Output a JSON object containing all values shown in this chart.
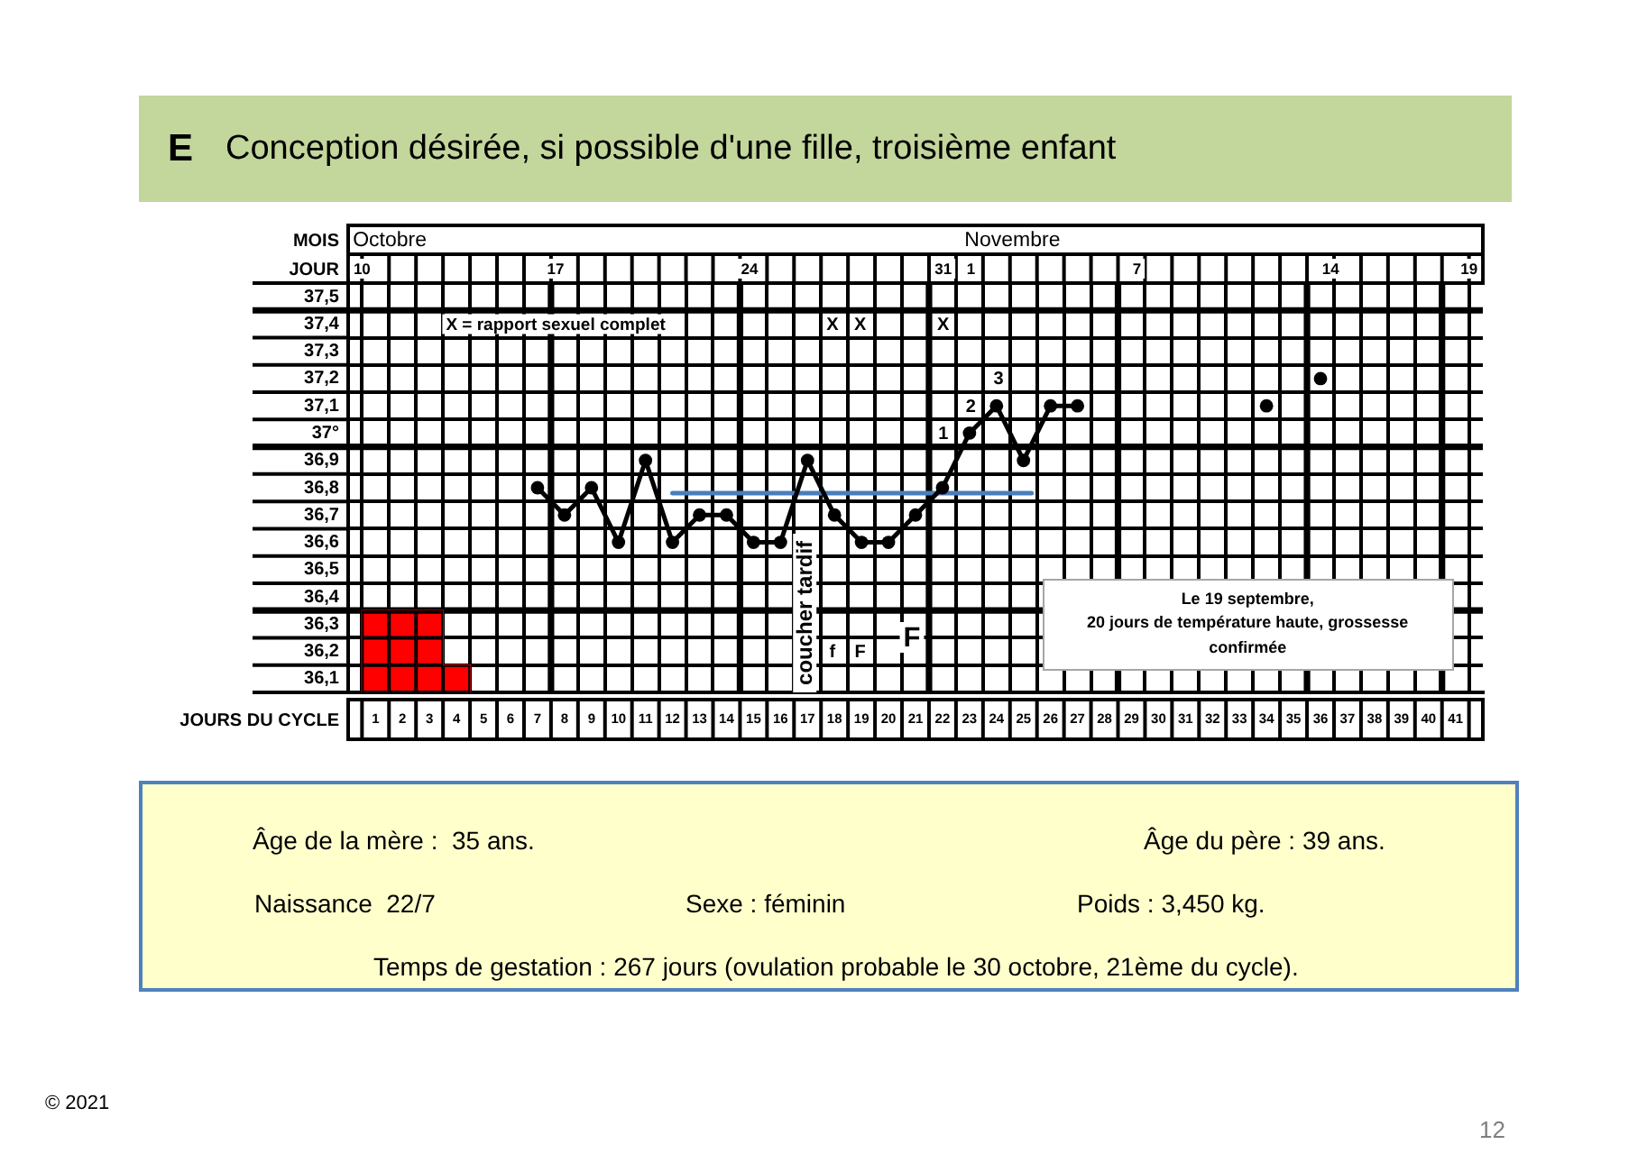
{
  "chart_data": [
    {
      "type": "line",
      "title": "E Conception désirée, si possible d'une fille, troisième enfant",
      "xlabel": "JOURS DU CYCLE",
      "series": [
        {
          "color": "#000000",
          "x": [
            7,
            8,
            9,
            10,
            11,
            12,
            13,
            14,
            15,
            16,
            17,
            18,
            19,
            20,
            21,
            22,
            23,
            24,
            25,
            26,
            27
          ],
          "values": [
            36.8,
            36.7,
            36.8,
            36.6,
            36.9,
            36.6,
            36.7,
            36.7,
            36.6,
            36.6,
            36.9,
            36.7,
            36.6,
            36.6,
            36.7,
            36.8,
            37,
            37.1,
            36.9,
            37.1,
            37.1
          ]
        },
        {
          "type": "scatter",
          "color": "#000000",
          "x": [
            34,
            36
          ],
          "values": [
            37.1,
            37.2
          ]
        },
        {
          "type": "line",
          "color": "#4a7ebb",
          "marker": "none",
          "x": [
            12,
            25.3
          ],
          "values": [
            36.78,
            36.78
          ]
        },
        {
          "type": "bar",
          "color": "#ff0000",
          "x": [
            1,
            2,
            3,
            4
          ],
          "values": [
            36.35,
            36.35,
            36.35,
            36.15
          ]
        }
      ],
      "xlim": [
        0.5,
        41.5
      ],
      "xticks": [
        1,
        2,
        3,
        4,
        5,
        6,
        7,
        8,
        9,
        10,
        11,
        12,
        13,
        14,
        15,
        16,
        17,
        18,
        19,
        20,
        21,
        22,
        23,
        24,
        25,
        26,
        27,
        28,
        29,
        30,
        31,
        32,
        33,
        34,
        35,
        36,
        37,
        38,
        39,
        40,
        41
      ],
      "ylim": [
        36.05,
        37.55
      ],
      "yticks": [
        {
          "value": 36.1,
          "label": "36,1"
        },
        {
          "value": 36.2,
          "label": "36,2"
        },
        {
          "value": 36.3,
          "label": "36,3"
        },
        {
          "value": 36.4,
          "label": "36,4"
        },
        {
          "value": 36.5,
          "label": "36,5"
        },
        {
          "value": 36.6,
          "label": "36,6"
        },
        {
          "value": 36.7,
          "label": "36,7"
        },
        {
          "value": 36.8,
          "label": "36,8"
        },
        {
          "value": 36.9,
          "label": "36,9"
        },
        {
          "value": 37,
          "label": "37°"
        },
        {
          "value": 37.1,
          "label": "37,1"
        },
        {
          "value": 37.2,
          "label": "37,2"
        },
        {
          "value": 37.3,
          "label": "37,3"
        },
        {
          "value": 37.4,
          "label": "37,4"
        },
        {
          "value": 37.5,
          "label": "37,5"
        }
      ],
      "grid": true,
      "marker": "circle",
      "line_style": "solid",
      "ref_lines": [
        {
          "axis": "x",
          "value": 7.5,
          "color": "#000000"
        },
        {
          "axis": "x",
          "value": 14.5,
          "color": "#000000"
        },
        {
          "axis": "x",
          "value": 21.5,
          "color": "#000000"
        },
        {
          "axis": "x",
          "value": 28.5,
          "color": "#000000"
        },
        {
          "axis": "x",
          "value": 35.5,
          "color": "#000000"
        },
        {
          "axis": "x",
          "value": 40.5,
          "color": "#000000"
        },
        {
          "axis": "y",
          "value": 36.35,
          "color": "#000000"
        },
        {
          "axis": "y",
          "value": 36.95,
          "color": "#000000"
        },
        {
          "axis": "y",
          "value": 37.45,
          "color": "#000000"
        }
      ],
      "annotations": [
        "MOIS",
        "Octobre",
        "Novembre",
        "JOUR",
        "10",
        "17",
        "24",
        "31",
        "1",
        "7",
        "14",
        "19",
        "X = rapport sexuel complet",
        "X",
        "X",
        "X",
        "1",
        "2",
        "3",
        "coucher tardif",
        "f",
        "F",
        "F",
        "Le 19 septembre,\n20 jours de température haute, grossesse confirmée",
        "© 2021",
        "12"
      ]
    },
    {
      "type": "other",
      "annotations": [
        "Âge de la mère :  35 ans.",
        "Âge du père : 39 ans.",
        "Naissance  22/7",
        "Sexe : féminin",
        "Poids : 3,450 kg.",
        "Temps de gestation : 267 jours (ovulation probable le 30 octobre, 21ème du cycle)."
      ]
    }
  ]
}
